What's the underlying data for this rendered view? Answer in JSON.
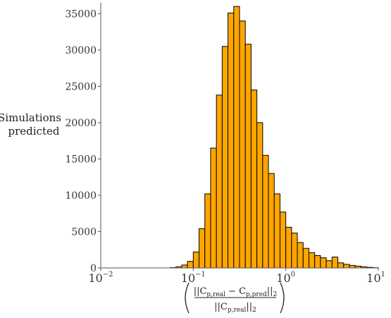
{
  "chart_data": {
    "type": "bar",
    "title": "",
    "ylabel_line1": "Simulations",
    "ylabel_line2": "predicted",
    "xlabel": {
      "num_left": "||C",
      "num_sub1": "p,real",
      "num_mid": " − C",
      "num_sub2": "p,pred",
      "num_right": "||",
      "num_norm_sub": "2",
      "den_left": "||C",
      "den_sub": "p,real",
      "den_right": "||",
      "den_norm_sub": "2"
    },
    "x_scale": "log",
    "xlim": [
      0.01,
      10
    ],
    "ylim": [
      0,
      36500
    ],
    "x_ticks": [
      {
        "base": "10",
        "exp": "−2",
        "value": 0.01
      },
      {
        "base": "10",
        "exp": "−1",
        "value": 0.1
      },
      {
        "base": "10",
        "exp": "0",
        "value": 1
      },
      {
        "base": "10",
        "exp": "1",
        "value": 10
      }
    ],
    "y_ticks": [
      0,
      5000,
      10000,
      15000,
      20000,
      25000,
      30000,
      35000
    ],
    "y_tick_labels": [
      "0",
      "5000",
      "10000",
      "15000",
      "20000",
      "25000",
      "30000",
      "35000"
    ],
    "bin_count": 48,
    "bin_start_log10": -2.0,
    "bin_width_log10": 0.0625,
    "values": [
      0,
      0,
      0,
      0,
      0,
      0,
      0,
      0,
      0,
      0,
      0,
      0,
      40,
      150,
      400,
      900,
      2200,
      5400,
      10200,
      16500,
      23800,
      30500,
      35100,
      36000,
      34000,
      30800,
      24500,
      20000,
      15500,
      13000,
      10200,
      7700,
      5600,
      4800,
      3500,
      2700,
      2100,
      1700,
      1400,
      1000,
      1500,
      700,
      500,
      350,
      250,
      150,
      80,
      30
    ]
  }
}
